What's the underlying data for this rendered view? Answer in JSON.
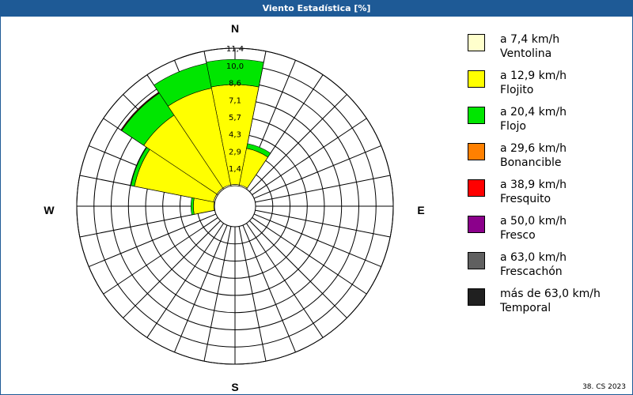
{
  "window": {
    "title": "Viento Estadística [%]"
  },
  "footer": {
    "text": "38. CS 2023"
  },
  "chart_data": {
    "type": "wind-rose",
    "title": "Viento Estadística [%]",
    "directions": [
      "N",
      "NNE",
      "NE",
      "ENE",
      "E",
      "ESE",
      "SE",
      "SSE",
      "S",
      "SSW",
      "SW",
      "WSW",
      "W",
      "WNW",
      "NW",
      "NNW"
    ],
    "compass_labels": {
      "N": "N",
      "E": "E",
      "S": "S",
      "W": "W"
    },
    "radial_ticks": [
      "1,4",
      "2,9",
      "4,3",
      "5,7",
      "7,1",
      "8,6",
      "10,0",
      "11,4"
    ],
    "radial_tick_values": [
      1.43,
      2.86,
      4.29,
      5.71,
      7.14,
      8.57,
      10.0,
      11.43
    ],
    "radial_max": 11.43,
    "classes": [
      {
        "range": "a 7,4 km/h",
        "name": "Ventolina",
        "color": "#ffffcc"
      },
      {
        "range": "a 12,9 km/h",
        "name": "Flojito",
        "color": "#ffff00"
      },
      {
        "range": "a 20,4 km/h",
        "name": "Flojo",
        "color": "#00e600"
      },
      {
        "range": "a 29,6 km/h",
        "name": "Bonancible",
        "color": "#ff8000"
      },
      {
        "range": "a 38,9 km/h",
        "name": "Fresquito",
        "color": "#ff0000"
      },
      {
        "range": "a 50,0 km/h",
        "name": "Fresco",
        "color": "#8b008b"
      },
      {
        "range": "a 63,0 km/h",
        "name": "Frescachón",
        "color": "#606060"
      },
      {
        "range": "más de 63,0 km/h",
        "name": "Temporal",
        "color": "#202020"
      }
    ],
    "series": [
      {
        "name": "Ventolina",
        "values": [
          0.1,
          0.1,
          0.0,
          0.0,
          0.0,
          0.0,
          0.0,
          0.0,
          0.0,
          0.0,
          0.0,
          0.0,
          0.05,
          0.1,
          0.1,
          0.1
        ]
      },
      {
        "name": "Flojito",
        "values": [
          8.3,
          3.1,
          0.0,
          0.0,
          0.0,
          0.0,
          0.0,
          0.0,
          0.0,
          0.0,
          0.0,
          0.0,
          1.7,
          6.7,
          7.3,
          8.2
        ]
      },
      {
        "name": "Flojo",
        "values": [
          2.1,
          0.4,
          0.0,
          0.0,
          0.0,
          0.0,
          0.0,
          0.0,
          0.0,
          0.0,
          0.0,
          0.0,
          0.2,
          0.3,
          2.2,
          2.1
        ]
      },
      {
        "name": "Bonancible",
        "values": [
          0,
          0,
          0,
          0,
          0,
          0,
          0,
          0,
          0,
          0,
          0,
          0,
          0,
          0,
          0.05,
          0
        ]
      },
      {
        "name": "Fresquito",
        "values": [
          0,
          0,
          0,
          0,
          0,
          0,
          0,
          0,
          0,
          0,
          0,
          0,
          0,
          0,
          0.05,
          0
        ]
      },
      {
        "name": "Fresco",
        "values": [
          0,
          0,
          0,
          0,
          0,
          0,
          0,
          0,
          0,
          0,
          0,
          0,
          0,
          0,
          0,
          0
        ]
      },
      {
        "name": "Frescachón",
        "values": [
          0,
          0,
          0,
          0,
          0,
          0,
          0,
          0,
          0,
          0,
          0,
          0,
          0,
          0,
          0,
          0
        ]
      },
      {
        "name": "Temporal",
        "values": [
          0,
          0,
          0,
          0,
          0,
          0,
          0,
          0,
          0,
          0,
          0,
          0,
          0,
          0,
          0,
          0
        ]
      }
    ],
    "grid": true
  }
}
